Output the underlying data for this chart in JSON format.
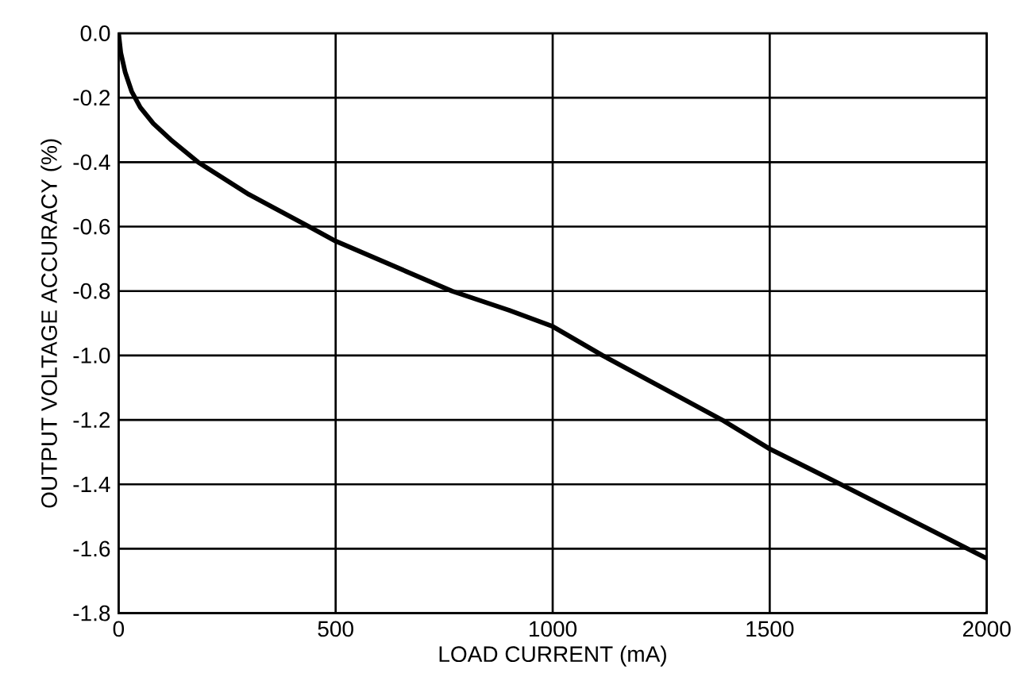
{
  "chart_data": {
    "type": "line",
    "xlabel": "LOAD CURRENT (mA)",
    "ylabel": "OUTPUT VOLTAGE ACCURACY (%)",
    "x": [
      0,
      5,
      15,
      30,
      50,
      80,
      120,
      183,
      300,
      439,
      500,
      768,
      900,
      1000,
      1115,
      1390,
      1500,
      1664,
      2000
    ],
    "series": [
      {
        "color": "#000000",
        "values": [
          0,
          -0.06,
          -0.12,
          -0.18,
          -0.23,
          -0.28,
          -0.33,
          -0.4,
          -0.5,
          -0.6,
          -0.645,
          -0.8,
          -0.86,
          -0.91,
          -1.0,
          -1.2,
          -1.29,
          -1.4,
          -1.63
        ]
      }
    ],
    "xlim": [
      0,
      2000
    ],
    "ylim": [
      -1.8,
      0
    ],
    "xticks": [
      0,
      500,
      1000,
      1500,
      2000
    ],
    "yticks": [
      {
        "value": 0,
        "label": "0.0"
      },
      {
        "value": -0.2,
        "label": "-0.2"
      },
      {
        "value": -0.4,
        "label": "-0.4"
      },
      {
        "value": -0.6,
        "label": "-0.6"
      },
      {
        "value": -0.8,
        "label": "-0.8"
      },
      {
        "value": -1.0,
        "label": "-1.0"
      },
      {
        "value": -1.2,
        "label": "-1.2"
      },
      {
        "value": -1.4,
        "label": "-1.4"
      },
      {
        "value": -1.6,
        "label": "-1.6"
      },
      {
        "value": -1.8,
        "label": "-1.8"
      }
    ],
    "grid": true,
    "marker": "none",
    "line_style": "solid"
  }
}
